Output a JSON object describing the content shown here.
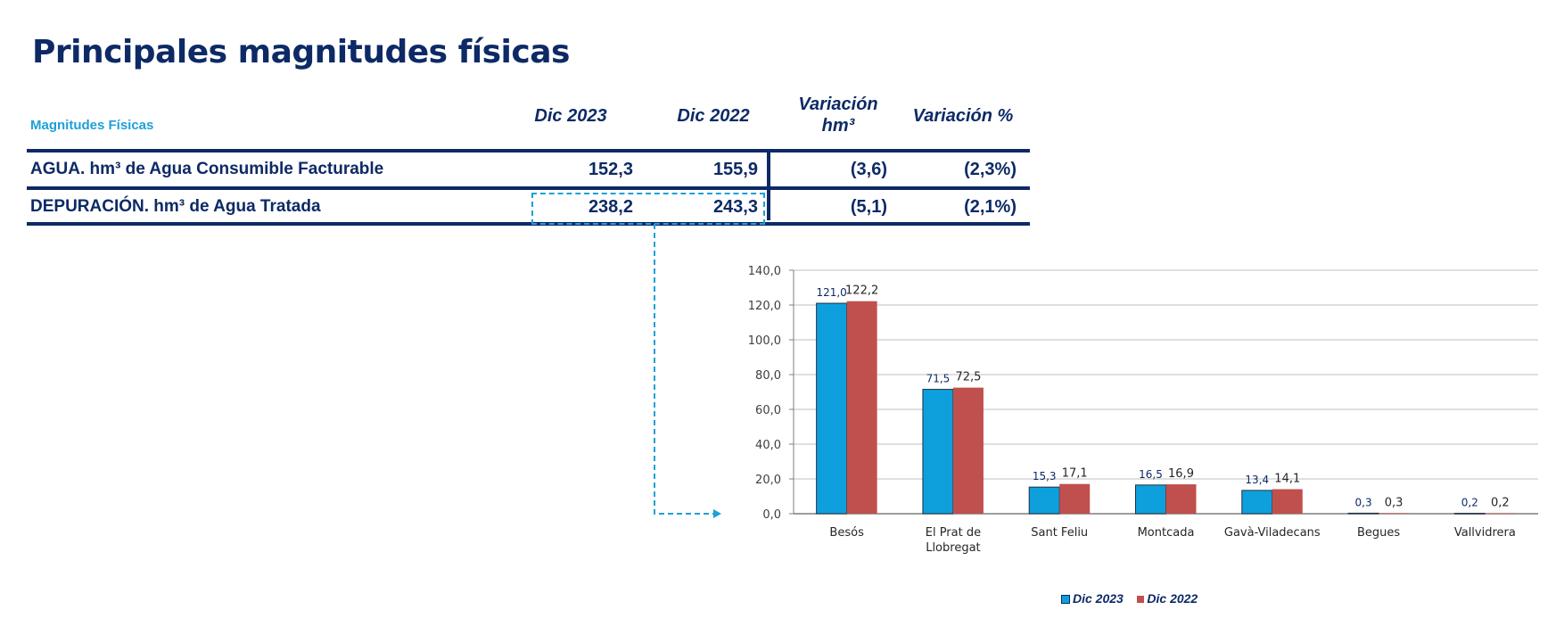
{
  "title": "Principales magnitudes físicas",
  "table": {
    "headers": [
      "Magnitudes Físicas",
      "Dic 2023",
      "Dic 2022",
      "Variación",
      "hm³",
      "Variación %"
    ],
    "rows": [
      {
        "label": "AGUA. hm³ de Agua Consumible Facturable",
        "dic2023": "152,3",
        "dic2022": "155,9",
        "var": "(3,6)",
        "varpct": "(2,3%)"
      },
      {
        "label": "DEPURACIÓN. hm³ de Agua Tratada",
        "dic2023": "238,2",
        "dic2022": "243,3",
        "var": "(5,1)",
        "varpct": "(2,1%)"
      }
    ]
  },
  "chart_data": {
    "type": "bar",
    "categories": [
      "Besós",
      "El Prat de Llobregat",
      "Sant Feliu",
      "Montcada",
      "Gavà-Viladecans",
      "Begues",
      "Vallvidrera"
    ],
    "series": [
      {
        "name": "Dic 2023",
        "values": [
          121.0,
          71.5,
          15.3,
          16.5,
          13.4,
          0.3,
          0.2
        ],
        "labels": [
          "121,0",
          "71,5",
          "15,3",
          "16,5",
          "13,4",
          "0,3",
          "0,2"
        ],
        "color": "#0ea0dd"
      },
      {
        "name": "Dic 2022",
        "values": [
          122.2,
          72.5,
          17.1,
          16.9,
          14.1,
          0.3,
          0.2
        ],
        "labels": [
          "122,2",
          "72,5",
          "17,1",
          "16,9",
          "14,1",
          "0,3",
          "0,2"
        ],
        "color": "#c0504d"
      }
    ],
    "yticks": [
      "0,0",
      "20,0",
      "40,0",
      "60,0",
      "80,0",
      "100,0",
      "120,0",
      "140,0"
    ],
    "ylim": [
      0,
      140
    ],
    "grid": true,
    "legend": "bottom"
  },
  "colors": {
    "navy": "#0d2a66",
    "accent": "#1ea0d8"
  }
}
